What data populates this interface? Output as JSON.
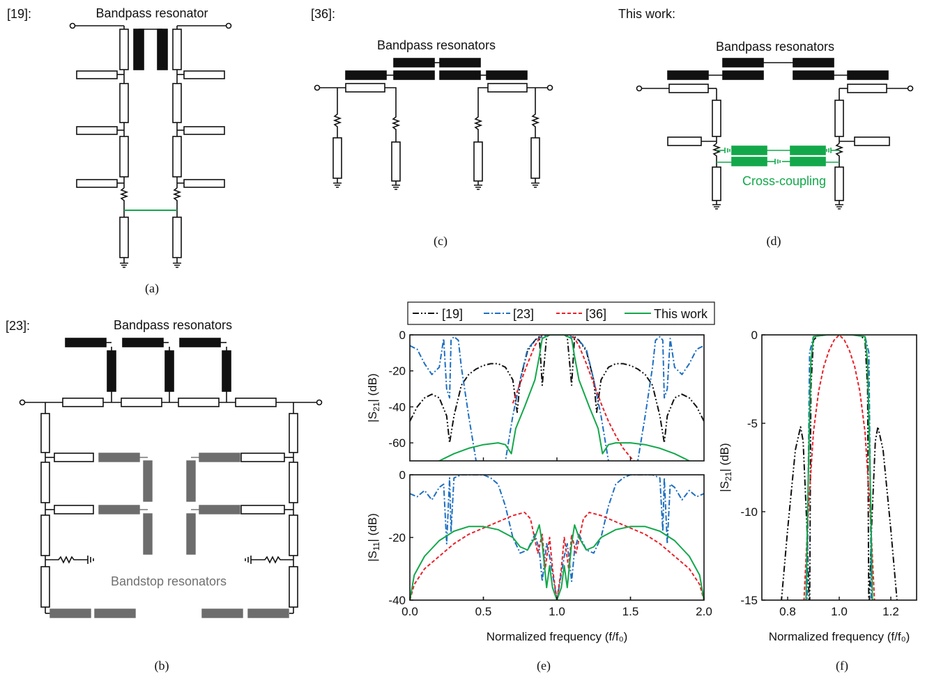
{
  "panels": {
    "a": {
      "ref": "[19]:",
      "title": "Bandpass resonator",
      "caption": "(a)"
    },
    "b": {
      "ref": "[23]:",
      "title": "Bandpass resonators",
      "bandstop": "Bandstop resonators",
      "caption": "(b)"
    },
    "c": {
      "ref": "[36]:",
      "title": "Bandpass resonators",
      "caption": "(c)"
    },
    "d": {
      "ref": "This work:",
      "title": "Bandpass resonators",
      "cross": "Cross-coupling",
      "caption": "(d)"
    },
    "e": {
      "caption": "(e)"
    },
    "f": {
      "caption": "(f)"
    }
  },
  "colors": {
    "black": "#111111",
    "blue": "#1f6fc0",
    "red": "#e8222a",
    "green": "#12a84a",
    "gray": "#707070"
  },
  "legend": [
    {
      "name": "[19]",
      "color": "#111111",
      "style": "dash-dot-dot"
    },
    {
      "name": "[23]",
      "color": "#1f6fc0",
      "style": "dash-dot"
    },
    {
      "name": "[36]",
      "color": "#e8222a",
      "style": "dash"
    },
    {
      "name": "This work",
      "color": "#12a84a",
      "style": "solid"
    }
  ],
  "chart_data": [
    {
      "type": "line",
      "id": "s21-wide",
      "ylabel_main": "|S",
      "ylabel_sub": "21",
      "ylabel_unit": "| (dB)",
      "xlim": [
        0,
        2
      ],
      "ylim": [
        -70,
        0
      ],
      "yticks": [
        0,
        -20,
        -40,
        -60
      ],
      "series": [
        {
          "name": "[19]",
          "x": [
            0,
            0.05,
            0.1,
            0.15,
            0.2,
            0.25,
            0.27,
            0.3,
            0.35,
            0.4,
            0.45,
            0.5,
            0.55,
            0.6,
            0.65,
            0.7,
            0.73,
            0.75,
            0.8,
            0.85,
            0.88,
            0.9,
            0.93,
            0.95,
            1.0,
            1.05,
            1.07,
            1.1,
            1.12,
            1.15,
            1.2,
            1.25,
            1.27,
            1.3,
            1.35,
            1.4,
            1.45,
            1.5,
            1.55,
            1.6,
            1.65,
            1.7,
            1.73,
            1.75,
            1.8,
            1.85,
            1.9,
            1.95,
            2.0
          ],
          "y": [
            -48,
            -40,
            -35,
            -33,
            -35,
            -45,
            -60,
            -45,
            -28,
            -22,
            -19,
            -17,
            -16,
            -16,
            -18,
            -25,
            -43,
            -25,
            -9,
            -3,
            -1,
            -28,
            -1,
            0,
            0,
            0,
            -1,
            -28,
            -1,
            -3,
            -9,
            -25,
            -43,
            -25,
            -18,
            -16,
            -16,
            -17,
            -19,
            -22,
            -28,
            -45,
            -60,
            -45,
            -35,
            -33,
            -35,
            -40,
            -48
          ]
        },
        {
          "name": "[23]",
          "x": [
            0,
            0.05,
            0.1,
            0.15,
            0.2,
            0.23,
            0.25,
            0.27,
            0.28,
            0.3,
            0.33,
            0.35,
            0.4,
            0.45,
            0.5,
            0.55,
            0.6,
            0.65,
            0.7,
            0.75,
            0.8,
            0.85,
            0.9,
            0.95,
            1.0,
            1.05,
            1.1,
            1.15,
            1.2,
            1.25,
            1.3,
            1.35,
            1.4,
            1.45,
            1.5,
            1.55,
            1.6,
            1.65,
            1.67,
            1.7,
            1.72,
            1.73,
            1.75,
            1.77,
            1.8,
            1.85,
            1.9,
            1.95,
            2.0
          ],
          "y": [
            -6,
            -8,
            -16,
            -22,
            -18,
            -2,
            -30,
            -35,
            -3,
            -1,
            -3,
            -18,
            -45,
            -70,
            -75,
            -80,
            -75,
            -70,
            -45,
            -25,
            -8,
            -3,
            -1,
            0,
            0,
            0,
            -1,
            -3,
            -8,
            -25,
            -45,
            -70,
            -75,
            -80,
            -75,
            -70,
            -45,
            -18,
            -3,
            -1,
            -3,
            -35,
            -30,
            -2,
            -18,
            -22,
            -16,
            -8,
            -6
          ]
        },
        {
          "name": "[36]",
          "x": [
            0.7,
            0.75,
            0.8,
            0.85,
            0.88,
            0.9,
            0.95,
            1.0,
            1.05,
            1.1,
            1.12,
            1.15,
            1.2,
            1.25,
            1.3,
            1.35,
            1.4,
            1.45,
            1.5,
            1.55,
            1.6
          ],
          "y": [
            -38,
            -27,
            -16,
            -6,
            -2,
            0,
            0,
            0,
            0,
            0,
            -2,
            -6,
            -16,
            -27,
            -38,
            -48,
            -56,
            -63,
            -68,
            -72,
            -76
          ]
        },
        {
          "name": "This work",
          "x": [
            0.1,
            0.2,
            0.3,
            0.4,
            0.5,
            0.6,
            0.65,
            0.69,
            0.72,
            0.78,
            0.85,
            0.88,
            0.9,
            0.95,
            1.0,
            1.05,
            1.1,
            1.12,
            1.15,
            1.22,
            1.28,
            1.31,
            1.35,
            1.4,
            1.5,
            1.6,
            1.7,
            1.8,
            1.9
          ],
          "y": [
            -75,
            -70,
            -66,
            -63,
            -61,
            -60,
            -61,
            -66,
            -52,
            -40,
            -25,
            -12,
            -2,
            0,
            0,
            0,
            -2,
            -12,
            -25,
            -40,
            -52,
            -66,
            -61,
            -60,
            -60,
            -61,
            -63,
            -66,
            -70
          ]
        }
      ]
    },
    {
      "type": "line",
      "id": "s11-wide",
      "ylabel_main": "|S",
      "ylabel_sub": "11",
      "ylabel_unit": "| (dB)",
      "xlabel": "Normalized frequency (f/f₀)",
      "xlim": [
        0,
        2
      ],
      "ylim": [
        -40,
        0
      ],
      "yticks": [
        0,
        -20,
        -40
      ],
      "xticks": [
        0.0,
        0.5,
        1.0,
        1.5,
        2.0
      ],
      "series": [
        {
          "name": "[23]",
          "x": [
            0,
            0.05,
            0.1,
            0.15,
            0.2,
            0.23,
            0.25,
            0.27,
            0.28,
            0.3,
            0.35,
            0.4,
            0.45,
            0.5,
            0.55,
            0.6,
            0.65,
            0.7,
            0.75,
            0.8,
            0.85,
            0.88,
            0.9,
            0.93,
            0.95,
            1.0,
            1.05,
            1.07,
            1.1,
            1.12,
            1.15,
            1.2,
            1.25,
            1.3,
            1.35,
            1.4,
            1.45,
            1.5,
            1.55,
            1.6,
            1.65,
            1.7,
            1.72,
            1.73,
            1.75,
            1.77,
            1.8,
            1.85,
            1.9,
            1.95,
            2.0
          ],
          "y": [
            -6,
            -7,
            -5,
            -8,
            -4,
            -3,
            -22,
            -1,
            -18,
            -1,
            0,
            0,
            0,
            0,
            -1,
            -3,
            -10,
            -20,
            -25,
            -24,
            -19,
            -24,
            -34,
            -22,
            -26,
            -40,
            -26,
            -22,
            -34,
            -24,
            -19,
            -24,
            -25,
            -20,
            -10,
            -3,
            -1,
            0,
            0,
            0,
            0,
            -1,
            -18,
            -1,
            -22,
            -3,
            -4,
            -8,
            -5,
            -7,
            -6
          ]
        },
        {
          "name": "[36]",
          "x": [
            0,
            0.03,
            0.1,
            0.2,
            0.3,
            0.4,
            0.5,
            0.6,
            0.7,
            0.78,
            0.82,
            0.87,
            0.9,
            0.92,
            0.95,
            0.97,
            1.0,
            1.03,
            1.05,
            1.08,
            1.1,
            1.13,
            1.18,
            1.22,
            1.3,
            1.4,
            1.5,
            1.6,
            1.7,
            1.8,
            1.9,
            1.97,
            2.0
          ],
          "y": [
            -40,
            -35,
            -30,
            -26,
            -22,
            -19,
            -17,
            -15,
            -13,
            -12,
            -14,
            -25,
            -19,
            -30,
            -20,
            -30,
            -40,
            -30,
            -20,
            -30,
            -19,
            -25,
            -14,
            -12,
            -13,
            -15,
            -17,
            -19,
            -22,
            -26,
            -30,
            -35,
            -40
          ]
        },
        {
          "name": "This work",
          "x": [
            0,
            0.03,
            0.1,
            0.2,
            0.3,
            0.4,
            0.5,
            0.6,
            0.7,
            0.75,
            0.8,
            0.85,
            0.88,
            0.9,
            0.93,
            0.95,
            0.97,
            1.0,
            1.03,
            1.05,
            1.07,
            1.1,
            1.12,
            1.15,
            1.2,
            1.25,
            1.3,
            1.4,
            1.5,
            1.6,
            1.7,
            1.8,
            1.9,
            1.97,
            2.0
          ],
          "y": [
            -40,
            -32,
            -26,
            -21,
            -18,
            -16.5,
            -16.5,
            -17.5,
            -20,
            -23,
            -24,
            -20,
            -16,
            -22,
            -36,
            -29,
            -36,
            -40,
            -36,
            -29,
            -36,
            -22,
            -16,
            -20,
            -24,
            -23,
            -20,
            -17.5,
            -16.5,
            -16.5,
            -18,
            -21,
            -26,
            -32,
            -40
          ]
        }
      ]
    },
    {
      "type": "line",
      "id": "s21-zoom",
      "ylabel_main": "|S",
      "ylabel_sub": "21",
      "ylabel_unit": "| (dB)",
      "xlabel": "Normalized frequency (f/f₀)",
      "xlim": [
        0.7,
        1.3
      ],
      "ylim": [
        -15,
        0
      ],
      "yticks": [
        0,
        -5,
        -10,
        -15
      ],
      "xticks": [
        0.8,
        1.0,
        1.2
      ],
      "series": [
        {
          "name": "[19]",
          "x": [
            0.77,
            0.8,
            0.83,
            0.85,
            0.86,
            0.875,
            0.885,
            0.89,
            0.9,
            0.92,
            1.0,
            1.08,
            1.1,
            1.11,
            1.115,
            1.125,
            1.14,
            1.15,
            1.17,
            1.2,
            1.23
          ],
          "y": [
            -16,
            -11,
            -6.5,
            -5.2,
            -6,
            -11,
            -16,
            -3,
            -0.3,
            0,
            0,
            0,
            -0.3,
            -3,
            -16,
            -11,
            -6,
            -5.2,
            -6.5,
            -11,
            -16
          ]
        },
        {
          "name": "[23]",
          "x": [
            0.875,
            0.88,
            0.885,
            0.9,
            0.95,
            1.0,
            1.05,
            1.1,
            1.115,
            1.12,
            1.125
          ],
          "y": [
            -16,
            -8,
            -1,
            -0.1,
            0,
            0,
            0,
            -0.1,
            -1,
            -8,
            -16
          ]
        },
        {
          "name": "[36]",
          "x": [
            0.86,
            0.88,
            0.9,
            0.92,
            0.94,
            0.96,
            0.98,
            1.0,
            1.02,
            1.04,
            1.06,
            1.08,
            1.1,
            1.12,
            1.14
          ],
          "y": [
            -16,
            -10,
            -5.5,
            -3.2,
            -1.8,
            -0.9,
            -0.3,
            0,
            -0.3,
            -0.9,
            -1.8,
            -3.2,
            -5.5,
            -10,
            -16
          ]
        },
        {
          "name": "This work",
          "x": [
            0.87,
            0.88,
            0.89,
            0.9,
            0.95,
            1.0,
            1.05,
            1.1,
            1.11,
            1.12,
            1.13
          ],
          "y": [
            -16,
            -8,
            -1.5,
            -0.1,
            0,
            0,
            0,
            -0.1,
            -1.5,
            -8,
            -16
          ]
        }
      ]
    }
  ]
}
